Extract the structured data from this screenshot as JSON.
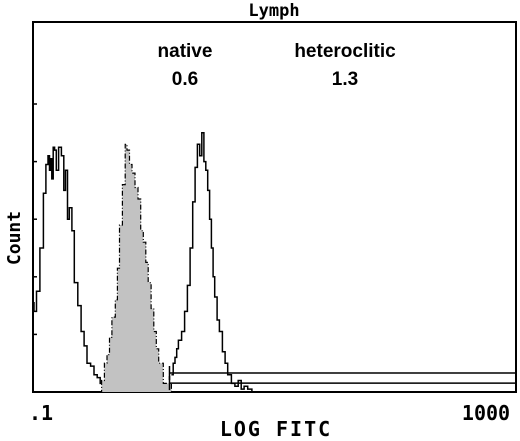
{
  "chart_data": {
    "type": "line",
    "title": "Lymph",
    "xlabel": "LOG FITC",
    "ylabel": "Count",
    "x_scale": "log",
    "xlim": [
      0.1,
      1000
    ],
    "ylim": [
      0,
      100
    ],
    "x_tick_labels": [
      {
        "value": 0.1,
        "label": ".1"
      },
      {
        "value": 1000,
        "label": "1000"
      }
    ],
    "annotations": [
      {
        "name": "native",
        "value": "0.6"
      },
      {
        "name": "heteroclitic",
        "value": "1.3"
      }
    ],
    "series": [
      {
        "style": "solid-outline",
        "x": [
          0.1,
          0.102,
          0.107,
          0.114,
          0.122,
          0.128,
          0.133,
          0.137,
          0.14,
          0.143,
          0.147,
          0.151,
          0.156,
          0.163,
          0.172,
          0.18,
          0.186,
          0.193,
          0.2,
          0.21,
          0.22,
          0.235,
          0.25,
          0.265,
          0.28,
          0.3,
          0.32,
          0.34,
          0.36,
          0.4,
          0.45,
          0.55
        ],
        "y": [
          31,
          28,
          35,
          50,
          69,
          79,
          82,
          77,
          81,
          74,
          85,
          84,
          77,
          85,
          82,
          70,
          77,
          60,
          64,
          56,
          38,
          30,
          21,
          16,
          10,
          9,
          6,
          5,
          3,
          2,
          1,
          0
        ]
      },
      {
        "style": "shaded-dashdot",
        "x": [
          0.35,
          0.37,
          0.39,
          0.41,
          0.43,
          0.45,
          0.48,
          0.5,
          0.52,
          0.55,
          0.58,
          0.6,
          0.63,
          0.66,
          0.7,
          0.74,
          0.78,
          0.82,
          0.86,
          0.9,
          0.95,
          1.0,
          1.05,
          1.1,
          1.2,
          1.4
        ],
        "y": [
          0,
          4,
          10,
          13,
          19,
          26,
          32,
          43,
          58,
          72,
          86,
          84,
          79,
          76,
          71,
          67,
          56,
          52,
          45,
          38,
          29,
          21,
          15,
          10,
          3,
          0
        ]
      },
      {
        "style": "solid-outline",
        "x": [
          1.4,
          1.45,
          1.5,
          1.55,
          1.6,
          1.7,
          1.8,
          1.9,
          2.0,
          2.1,
          2.2,
          2.3,
          2.4,
          2.5,
          2.6,
          2.7,
          2.8,
          2.9,
          3.0,
          3.1,
          3.2,
          3.35,
          3.5,
          3.7,
          3.9,
          4.1,
          4.4,
          4.7,
          5.0,
          5.3,
          5.6,
          6.0,
          6.5
        ],
        "y": [
          6,
          10,
          12,
          15,
          18,
          21,
          28,
          37,
          50,
          66,
          78,
          86,
          82,
          90,
          80,
          77,
          70,
          60,
          50,
          40,
          33,
          25,
          21,
          14,
          10,
          6,
          3,
          2,
          4,
          1,
          2,
          1,
          0
        ]
      }
    ],
    "marker_lines": [
      {
        "x_start": 1.35,
        "x_end": 1000,
        "level": 6.6
      },
      {
        "x_start": 1.35,
        "x_end": 1000,
        "level": 3.1
      }
    ]
  }
}
